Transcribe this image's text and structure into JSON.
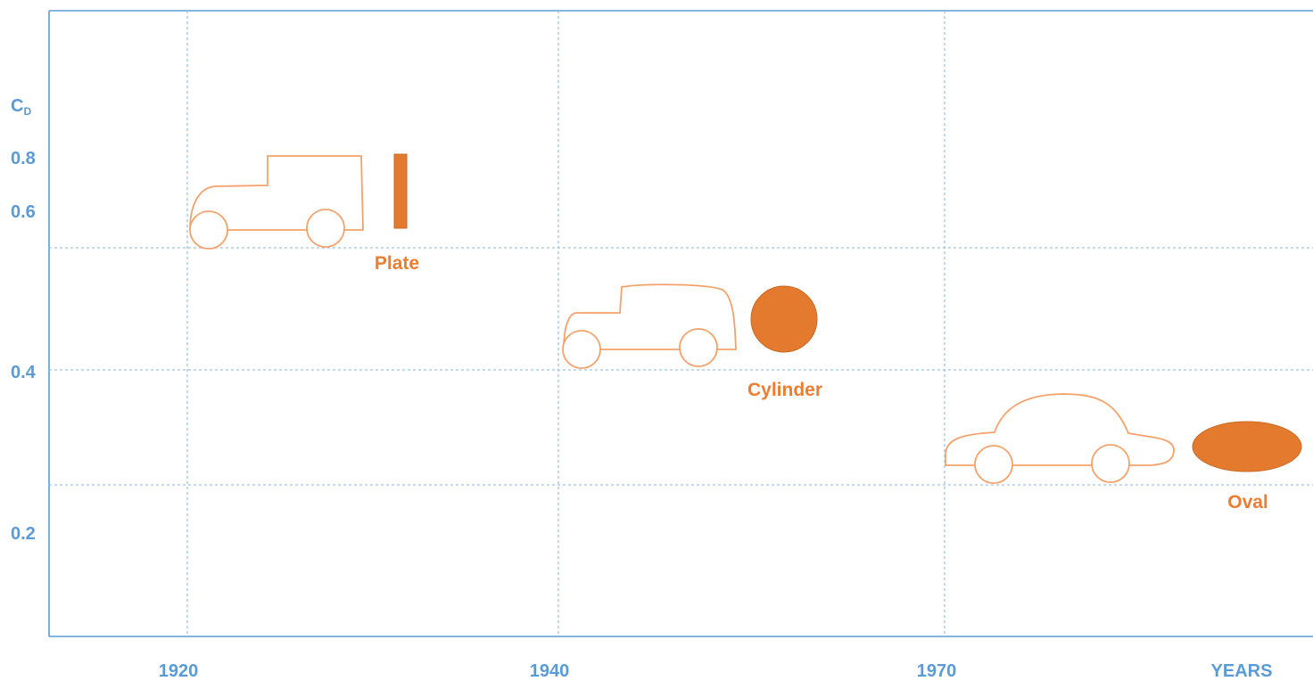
{
  "y_axis": {
    "label": "C",
    "label_subscript": "D",
    "ticks": [
      "0.8",
      "0.6",
      "0.4",
      "0.2"
    ]
  },
  "x_axis": {
    "ticks": [
      "1920",
      "1940",
      "1970"
    ],
    "label": "YEARS"
  },
  "shapes": [
    {
      "label": "Plate"
    },
    {
      "label": "Cylinder"
    },
    {
      "label": "Oval"
    }
  ]
}
